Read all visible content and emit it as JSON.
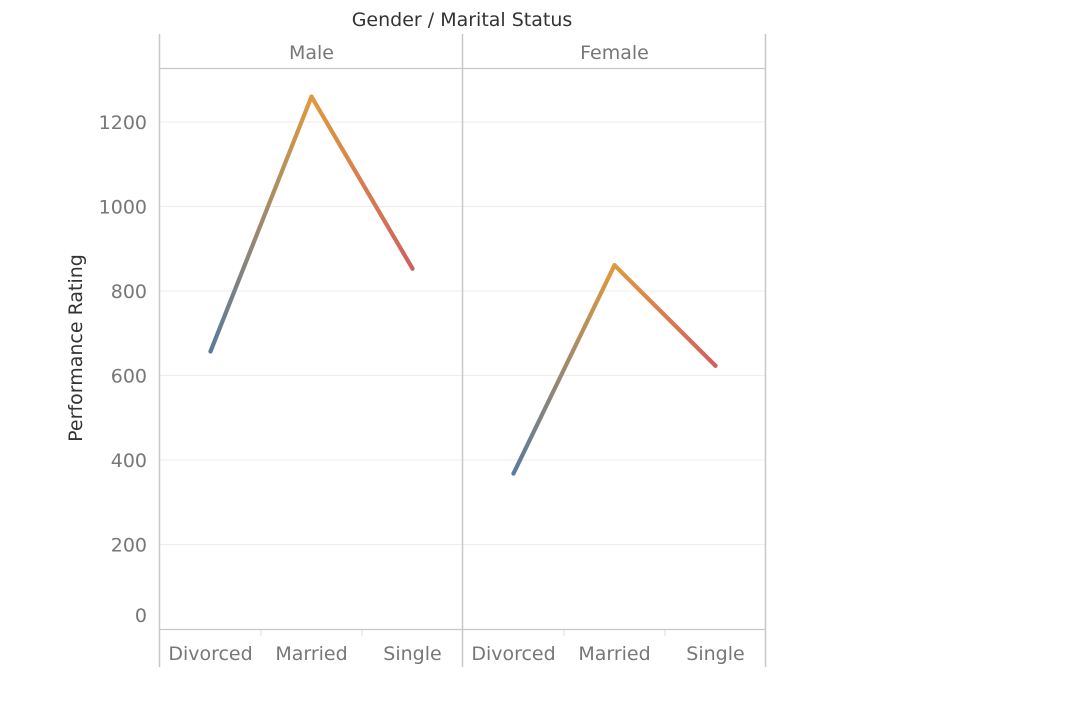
{
  "chart_data": {
    "type": "line",
    "title": "Gender / Marital Status",
    "ylabel": "Performance Rating",
    "xlabel": "",
    "ylim": [
      0,
      1300
    ],
    "yticks": [
      0,
      200,
      400,
      600,
      800,
      1000,
      1200
    ],
    "grid": true,
    "categories": [
      "Divorced",
      "Married",
      "Single"
    ],
    "panels": [
      {
        "name": "Male",
        "values": [
          657,
          1260,
          853
        ]
      },
      {
        "name": "Female",
        "values": [
          368,
          861,
          623
        ]
      }
    ],
    "colors": {
      "divorced": "#5b7a9c",
      "married": "#e09a3e",
      "single": "#d0605e"
    }
  }
}
